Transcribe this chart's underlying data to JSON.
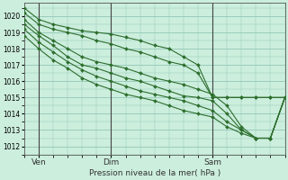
{
  "xlabel": "Pression niveau de la mer( hPa )",
  "background_color": "#cceedd",
  "grid_color": "#99ccbb",
  "line_color": "#2d6e2d",
  "marker_color": "#2d6e2d",
  "ylim": [
    1011.5,
    1020.8
  ],
  "xlim": [
    0,
    72
  ],
  "yticks": [
    1012,
    1013,
    1014,
    1015,
    1016,
    1017,
    1018,
    1019,
    1020
  ],
  "xtick_positions": [
    4,
    24,
    52
  ],
  "xtick_labels": [
    "Ven",
    "Dim",
    "Sam"
  ],
  "vline_positions": [
    4,
    24,
    52
  ],
  "series": [
    {
      "x": [
        0,
        4,
        8,
        12,
        16,
        20,
        24,
        28,
        32,
        36,
        40,
        44,
        48,
        52,
        56,
        60,
        64,
        68,
        72
      ],
      "y": [
        1020.5,
        1019.8,
        1019.5,
        1019.3,
        1019.1,
        1019.0,
        1018.9,
        1018.7,
        1018.5,
        1018.2,
        1018.0,
        1017.5,
        1017.0,
        1015.0,
        1015.0,
        1015.0,
        1015.0,
        1015.0,
        1015.0
      ]
    },
    {
      "x": [
        0,
        4,
        8,
        12,
        16,
        20,
        24,
        28,
        32,
        36,
        40,
        44,
        48,
        52,
        56,
        60,
        64,
        68,
        72
      ],
      "y": [
        1020.2,
        1019.5,
        1019.2,
        1019.0,
        1018.8,
        1018.5,
        1018.3,
        1018.0,
        1017.8,
        1017.5,
        1017.2,
        1017.0,
        1016.5,
        1015.0,
        1015.0,
        1015.0,
        1015.0,
        1015.0,
        1015.0
      ]
    },
    {
      "x": [
        0,
        4,
        8,
        12,
        16,
        20,
        24,
        28,
        32,
        36,
        40,
        44,
        48,
        52,
        56,
        60,
        64,
        68,
        72
      ],
      "y": [
        1019.8,
        1019.0,
        1018.5,
        1018.0,
        1017.5,
        1017.2,
        1017.0,
        1016.8,
        1016.5,
        1016.2,
        1016.0,
        1015.8,
        1015.5,
        1015.2,
        1014.5,
        1013.2,
        1012.5,
        1012.5,
        1015.0
      ]
    },
    {
      "x": [
        0,
        4,
        8,
        12,
        16,
        20,
        24,
        28,
        32,
        36,
        40,
        44,
        48,
        52,
        56,
        60,
        64,
        68,
        72
      ],
      "y": [
        1019.5,
        1018.8,
        1018.2,
        1017.5,
        1017.0,
        1016.8,
        1016.5,
        1016.2,
        1016.0,
        1015.7,
        1015.4,
        1015.1,
        1015.0,
        1014.8,
        1014.0,
        1013.0,
        1012.5,
        1012.5,
        1015.0
      ]
    },
    {
      "x": [
        0,
        4,
        8,
        12,
        16,
        20,
        24,
        28,
        32,
        36,
        40,
        44,
        48,
        52,
        56,
        60,
        64,
        68,
        72
      ],
      "y": [
        1019.2,
        1018.4,
        1017.8,
        1017.2,
        1016.7,
        1016.3,
        1016.0,
        1015.7,
        1015.4,
        1015.2,
        1015.0,
        1014.8,
        1014.5,
        1014.2,
        1013.5,
        1013.0,
        1012.5,
        1012.5,
        1015.0
      ]
    },
    {
      "x": [
        0,
        4,
        8,
        12,
        16,
        20,
        24,
        28,
        32,
        36,
        40,
        44,
        48,
        52,
        56,
        60,
        64,
        68,
        72
      ],
      "y": [
        1018.8,
        1018.0,
        1017.3,
        1016.8,
        1016.2,
        1015.8,
        1015.5,
        1015.2,
        1015.0,
        1014.8,
        1014.5,
        1014.2,
        1014.0,
        1013.8,
        1013.2,
        1012.8,
        1012.5,
        1012.5,
        1015.0
      ]
    }
  ]
}
